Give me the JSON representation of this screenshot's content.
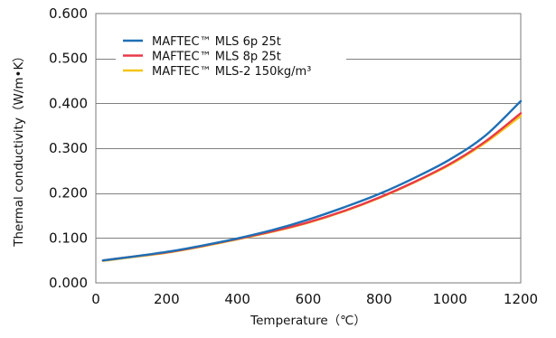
{
  "chart_data": {
    "type": "line",
    "xlabel": "Temperature（℃）",
    "ylabel": "Thermal conductivity（W/m•K）",
    "xlim": [
      0,
      1200
    ],
    "ylim": [
      0.0,
      0.6
    ],
    "x_ticks": [
      0,
      200,
      400,
      600,
      800,
      1000,
      1200
    ],
    "y_ticks": [
      0.0,
      0.1,
      0.2,
      0.3,
      0.4,
      0.5,
      0.6
    ],
    "x_tick_labels": [
      "0",
      "200",
      "400",
      "600",
      "800",
      "1000",
      "1200"
    ],
    "y_tick_labels": [
      "0.000",
      "0.100",
      "0.200",
      "0.300",
      "0.400",
      "0.500",
      "0.600"
    ],
    "grid": true,
    "legend_position": "top-left",
    "series": [
      {
        "name": "MAFTEC™ MLS 6p 25t",
        "color": "#1f6fb5",
        "x": [
          20,
          100,
          200,
          300,
          400,
          500,
          600,
          700,
          800,
          900,
          1000,
          1100,
          1200
        ],
        "y": [
          0.05,
          0.058,
          0.069,
          0.083,
          0.099,
          0.118,
          0.141,
          0.168,
          0.198,
          0.234,
          0.275,
          0.328,
          0.405
        ]
      },
      {
        "name": "MAFTEC™ MLS 8p 25t",
        "color": "#e83a4a",
        "x": [
          20,
          100,
          200,
          300,
          400,
          500,
          600,
          700,
          800,
          900,
          1000,
          1100,
          1200
        ],
        "y": [
          0.05,
          0.058,
          0.068,
          0.082,
          0.098,
          0.115,
          0.135,
          0.16,
          0.19,
          0.225,
          0.265,
          0.315,
          0.378
        ]
      },
      {
        "name": "MAFTEC™ MLS-2 150kg/m³",
        "color": "#f5c518",
        "x": [
          20,
          100,
          200,
          300,
          400,
          500,
          600,
          700,
          800,
          900,
          1000,
          1100,
          1200
        ],
        "y": [
          0.049,
          0.057,
          0.067,
          0.081,
          0.097,
          0.114,
          0.134,
          0.159,
          0.189,
          0.224,
          0.263,
          0.312,
          0.372
        ]
      }
    ]
  }
}
